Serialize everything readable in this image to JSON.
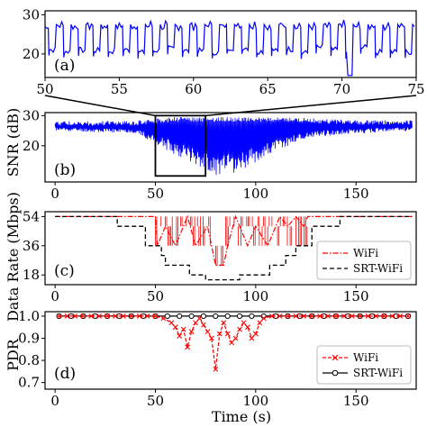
{
  "figure": {
    "ylabel_snr": "SNR (dB)",
    "ylabel_rate": "Data Rate (Mbps)",
    "ylabel_pdr": "PDR",
    "xlabel": "Time (s)"
  },
  "chart_data": [
    {
      "panel": "(a)",
      "type": "line",
      "xlim": [
        50,
        75
      ],
      "ylim": [
        14,
        31
      ],
      "xticks": [
        "50",
        "55",
        "60",
        "65",
        "70",
        "75"
      ],
      "yticks": [
        "20",
        "30"
      ],
      "series": [
        {
          "color": "#0000ff",
          "shape": "square-wave",
          "period_s": 1.0,
          "high_db": 27,
          "low_db": 21,
          "low_min_db": 14.5
        }
      ]
    },
    {
      "panel": "(b)",
      "type": "line",
      "xlim": [
        -5,
        180
      ],
      "ylim": [
        8,
        31
      ],
      "xticks": [
        "0",
        "50",
        "100",
        "150"
      ],
      "yticks": [
        "20",
        "30"
      ],
      "series": [
        {
          "color": "#0000ff",
          "envelope": {
            "x": [
              0,
              20,
              40,
              50,
              60,
              70,
              80,
              90,
              100,
              110,
              120,
              130,
              150,
              170,
              178
            ],
            "high": [
              28.2,
              28.2,
              28.3,
              29,
              29.5,
              29.5,
              29.5,
              29.5,
              29.5,
              29.5,
              29.5,
              29,
              28.5,
              28.5,
              28.5
            ],
            "low": [
              25,
              24.5,
              24.2,
              20.5,
              17,
              14,
              10,
              11,
              14.5,
              18,
              21,
              23,
              24,
              24.8,
              25
            ]
          }
        }
      ],
      "zoom_box": {
        "x": [
          50,
          75
        ],
        "y": [
          10,
          30
        ]
      }
    },
    {
      "panel": "(c)",
      "type": "line",
      "xlim": [
        -5,
        180
      ],
      "ylim": [
        12,
        57
      ],
      "xticks": [
        "0",
        "50",
        "100",
        "150"
      ],
      "yticks": [
        "18",
        "36",
        "54"
      ],
      "legend": {
        "position": "right",
        "entries": [
          "WiFi",
          "SRT-WiFi"
        ]
      },
      "series": [
        {
          "name": "WiFi",
          "color": "#ff0000",
          "style": "dashdot",
          "points": [
            [
              0,
              54
            ],
            [
              30,
              54
            ],
            [
              46,
              54
            ],
            [
              50,
              54
            ],
            [
              51,
              36
            ],
            [
              55,
              48
            ],
            [
              60,
              36
            ],
            [
              66,
              54
            ],
            [
              70,
              36
            ],
            [
              76,
              48
            ],
            [
              80,
              24
            ],
            [
              84,
              24
            ],
            [
              86,
              36
            ],
            [
              90,
              54
            ],
            [
              96,
              36
            ],
            [
              100,
              48
            ],
            [
              106,
              36
            ],
            [
              112,
              54
            ],
            [
              116,
              48
            ],
            [
              120,
              54
            ],
            [
              124,
              48
            ],
            [
              126,
              54
            ],
            [
              178,
              54
            ]
          ],
          "burst_x": [
            50,
            126
          ],
          "burst_levels": [
            36,
            48,
            54
          ]
        },
        {
          "name": "SRT-WiFi",
          "color": "#000000",
          "style": "dashed",
          "points": [
            [
              0,
              54
            ],
            [
              31,
              54
            ],
            [
              31,
              48
            ],
            [
              45,
              48
            ],
            [
              45,
              36
            ],
            [
              53,
              36
            ],
            [
              53,
              30
            ],
            [
              55,
              30
            ],
            [
              55,
              24
            ],
            [
              67,
              24
            ],
            [
              67,
              18
            ],
            [
              75,
              18
            ],
            [
              75,
              15
            ],
            [
              92,
              15
            ],
            [
              92,
              18
            ],
            [
              107,
              18
            ],
            [
              107,
              24
            ],
            [
              115,
              24
            ],
            [
              115,
              30
            ],
            [
              120,
              30
            ],
            [
              120,
              36
            ],
            [
              128,
              36
            ],
            [
              128,
              48
            ],
            [
              142,
              48
            ],
            [
              142,
              54
            ],
            [
              178,
              54
            ]
          ]
        }
      ]
    },
    {
      "panel": "(d)",
      "type": "line",
      "xlim": [
        -5,
        180
      ],
      "ylim": [
        0.67,
        1.02
      ],
      "xticks": [
        "0",
        "50",
        "100",
        "150"
      ],
      "yticks": [
        "0.7",
        "0.8",
        "0.9",
        "1.0"
      ],
      "legend": {
        "position": "right",
        "entries": [
          "WiFi",
          "SRT-WiFi"
        ]
      },
      "series": [
        {
          "name": "WiFi",
          "color": "#ff0000",
          "style": "dashed",
          "marker": "x",
          "x": [
            2,
            6,
            10,
            14,
            18,
            22,
            26,
            30,
            34,
            38,
            42,
            46,
            50,
            54,
            58,
            60,
            62,
            64,
            66,
            68,
            70,
            72,
            74,
            76,
            78,
            80,
            82,
            84,
            86,
            88,
            90,
            92,
            94,
            96,
            98,
            100,
            102,
            104,
            108,
            112,
            116,
            120,
            124,
            128,
            132,
            136,
            140,
            144,
            148,
            152,
            156,
            160,
            164,
            168,
            172,
            176
          ],
          "y": [
            1.0,
            1.0,
            1.0,
            1.0,
            1.0,
            1.0,
            1.0,
            1.0,
            1.0,
            1.0,
            1.0,
            1.0,
            1.0,
            0.99,
            0.97,
            0.95,
            0.91,
            0.94,
            0.86,
            0.93,
            0.97,
            0.99,
            0.96,
            0.93,
            0.9,
            0.76,
            0.92,
            0.97,
            0.92,
            0.88,
            0.9,
            0.94,
            0.97,
            0.95,
            0.9,
            0.92,
            0.97,
            0.99,
            1.0,
            1.0,
            1.0,
            1.0,
            1.0,
            1.0,
            1.0,
            1.0,
            1.0,
            1.0,
            1.0,
            1.0,
            1.0,
            1.0,
            1.0,
            1.0,
            1.0,
            1.0
          ]
        },
        {
          "name": "SRT-WiFi",
          "color": "#000000",
          "style": "solid",
          "marker": "o",
          "x": [
            2,
            8,
            14,
            20,
            26,
            32,
            38,
            44,
            50,
            56,
            62,
            68,
            74,
            80,
            86,
            92,
            98,
            104,
            110,
            116,
            122,
            128,
            134,
            140,
            146,
            152,
            158,
            164,
            170,
            176
          ],
          "y": [
            1.0,
            1.0,
            1.0,
            1.0,
            1.0,
            1.0,
            1.0,
            1.0,
            1.0,
            1.0,
            1.0,
            1.0,
            1.0,
            1.0,
            1.0,
            1.0,
            1.0,
            1.0,
            1.0,
            1.0,
            1.0,
            1.0,
            1.0,
            1.0,
            1.0,
            1.0,
            1.0,
            1.0,
            1.0,
            1.0
          ]
        }
      ]
    }
  ]
}
